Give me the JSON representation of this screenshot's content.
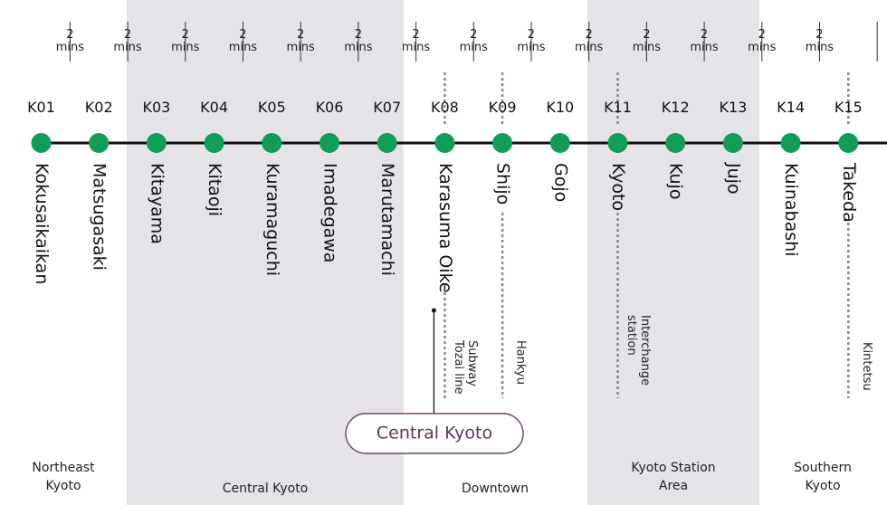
{
  "stations": [
    {
      "code": "K01",
      "name": "Kokusaikaikan"
    },
    {
      "code": "K02",
      "name": "Matsugasaki"
    },
    {
      "code": "K03",
      "name": "Kitayama"
    },
    {
      "code": "K04",
      "name": "Kitaoji"
    },
    {
      "code": "K05",
      "name": "Kuramaguchi"
    },
    {
      "code": "K06",
      "name": "Imadegawa"
    },
    {
      "code": "K07",
      "name": "Marutamachi"
    },
    {
      "code": "K08",
      "name": "Karasuma Oike"
    },
    {
      "code": "K09",
      "name": "Shijo"
    },
    {
      "code": "K10",
      "name": "Gojo"
    },
    {
      "code": "K11",
      "name": "Kyoto"
    },
    {
      "code": "K12",
      "name": "Kujo"
    },
    {
      "code": "K13",
      "name": "Jujo"
    },
    {
      "code": "K14",
      "name": "Kuinabashi"
    },
    {
      "code": "K15",
      "name": "Takeda"
    }
  ],
  "travel_times": {
    "number": "2",
    "unit": "mins",
    "count": 14
  },
  "connections": [
    {
      "station": "K08",
      "lines": [
        "Subway",
        "Tozai line"
      ]
    },
    {
      "station": "K09",
      "lines": [
        "Hankyu"
      ]
    },
    {
      "station": "K11",
      "lines": [
        "Interchange",
        "station"
      ]
    },
    {
      "station": "K15",
      "lines": [
        "Kintetsu"
      ]
    }
  ],
  "zones": [
    {
      "lines": [
        "Northeast",
        "Kyoto"
      ],
      "shaded": false
    },
    {
      "lines": [
        "Central Kyoto"
      ],
      "shaded": true
    },
    {
      "lines": [
        "Downtown"
      ],
      "shaded": false
    },
    {
      "lines": [
        "Kyoto Station",
        "Area"
      ],
      "shaded": true
    },
    {
      "lines": [
        "Southern",
        "Kyoto"
      ],
      "shaded": false
    }
  ],
  "callout": {
    "label": "Central Kyoto",
    "station": "K08"
  },
  "colors": {
    "station_dot": "#0f9d58",
    "zone_band": "#e6e3e8",
    "callout_text": "#5a3a5a"
  }
}
